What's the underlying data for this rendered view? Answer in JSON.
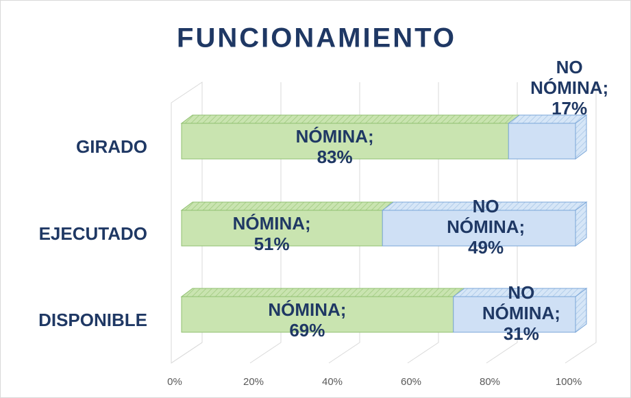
{
  "chart_data": {
    "type": "stacked_bar_horizontal",
    "title": "FUNCIONAMIENTO",
    "categories": [
      "GIRADO",
      "EJECUTADO",
      "DISPONIBLE"
    ],
    "series": [
      {
        "name": "NÓMINA",
        "color": "#c9e4b0",
        "values": [
          83,
          51,
          69
        ],
        "value_labels": [
          "NÓMINA; 83%",
          "NÓMINA; 51%",
          "NÓMINA; 69%"
        ]
      },
      {
        "name": "NO NÓMINA",
        "color": "#cfe0f5",
        "values": [
          17,
          49,
          31
        ],
        "value_labels": [
          "NO NÓMINA; 17%",
          "NO NÓMINA; 49%",
          "NO NÓMINA; 31%"
        ]
      }
    ],
    "xlim": [
      0,
      100
    ],
    "xticks": [
      {
        "value": 0,
        "label": "0%"
      },
      {
        "value": 20,
        "label": "20%"
      },
      {
        "value": 40,
        "label": "40%"
      },
      {
        "value": 60,
        "label": "60%"
      },
      {
        "value": 80,
        "label": "80%"
      },
      {
        "value": 100,
        "label": "100%"
      }
    ],
    "grid": true
  }
}
